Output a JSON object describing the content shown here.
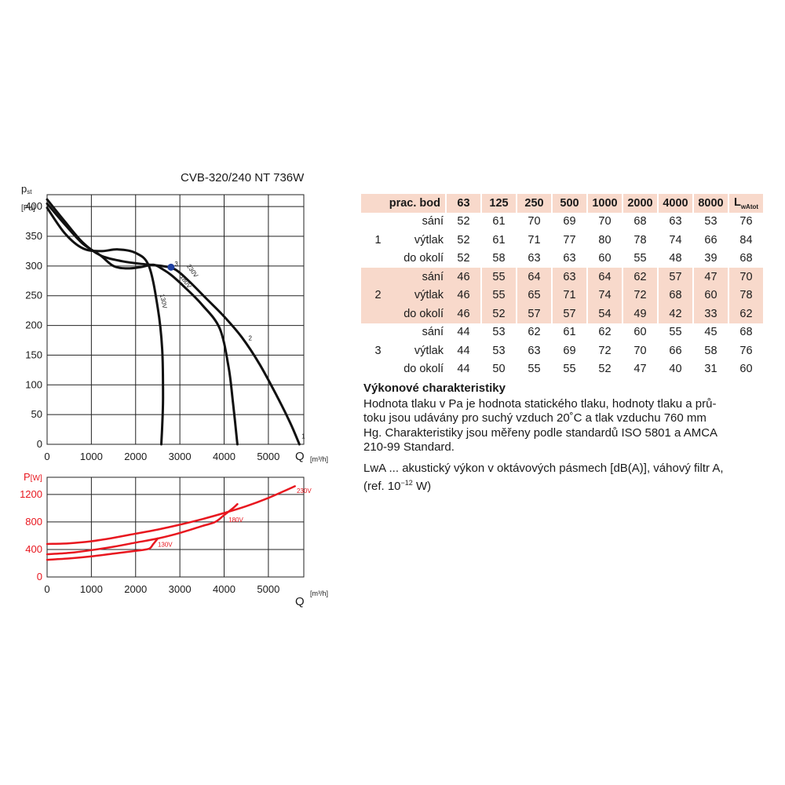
{
  "chart_data": [
    {
      "type": "line",
      "title": "CVB-320/240 NT 736W",
      "ylabel_main": "p",
      "ylabel_sub": "st",
      "yunit": "[Pa]",
      "xlabel": "Q",
      "xunit": "[m³/h]",
      "xlim": [
        0,
        5800
      ],
      "ylim": [
        0,
        420
      ],
      "xticks": [
        0,
        1000,
        2000,
        3000,
        4000,
        5000
      ],
      "yticks": [
        0,
        50,
        100,
        150,
        200,
        250,
        300,
        350,
        400
      ],
      "grid": true,
      "point_labels": [
        "1",
        "2",
        "3"
      ],
      "series": [
        {
          "name": "230V",
          "x": [
            0,
            400,
            800,
            1200,
            1700,
            2200,
            2600,
            2900,
            3200,
            3600,
            4000,
            4400,
            4800,
            5200,
            5500,
            5700
          ],
          "y": [
            412,
            375,
            340,
            318,
            308,
            303,
            300,
            294,
            275,
            245,
            215,
            180,
            135,
            80,
            35,
            0
          ]
        },
        {
          "name": "180V",
          "x": [
            0,
            400,
            800,
            1200,
            1500,
            1800,
            2100,
            2400,
            2600,
            2800,
            3100,
            3500,
            3900,
            4100,
            4200,
            4300
          ],
          "y": [
            405,
            370,
            338,
            318,
            300,
            296,
            298,
            302,
            295,
            285,
            265,
            235,
            195,
            130,
            70,
            0
          ]
        },
        {
          "name": "130V",
          "x": [
            0,
            400,
            800,
            1200,
            1600,
            2000,
            2300,
            2500,
            2600,
            2620,
            2600,
            2580
          ],
          "y": [
            398,
            355,
            330,
            325,
            328,
            322,
            300,
            230,
            160,
            80,
            30,
            0
          ]
        }
      ],
      "operating_point": {
        "x": 2800,
        "y": 298
      }
    },
    {
      "type": "line",
      "ylabel_main": "P",
      "yunit": "[W]",
      "xlabel": "Q",
      "xunit": "[m³/h]",
      "xlim": [
        0,
        5800
      ],
      "ylim": [
        0,
        1450
      ],
      "xticks": [
        0,
        1000,
        2000,
        3000,
        4000,
        5000
      ],
      "yticks": [
        0,
        400,
        800,
        1200
      ],
      "grid": true,
      "color": "#e8171f",
      "series": [
        {
          "name": "230V",
          "x": [
            0,
            500,
            1000,
            1500,
            2000,
            2500,
            3000,
            3500,
            4000,
            4500,
            5000,
            5600
          ],
          "y": [
            480,
            490,
            520,
            570,
            630,
            690,
            760,
            840,
            930,
            1030,
            1150,
            1320
          ]
        },
        {
          "name": "180V",
          "x": [
            0,
            500,
            1000,
            1500,
            2000,
            2500,
            3000,
            3500,
            3800,
            4000,
            4200,
            4300
          ],
          "y": [
            330,
            350,
            390,
            440,
            500,
            560,
            640,
            740,
            800,
            900,
            1000,
            1060
          ]
        },
        {
          "name": "130V",
          "x": [
            0,
            500,
            1000,
            1500,
            2000,
            2300,
            2400,
            2500
          ],
          "y": [
            250,
            270,
            300,
            340,
            380,
            410,
            480,
            560
          ]
        }
      ]
    }
  ],
  "table": {
    "header_label": "prac. bod",
    "bands": [
      "63",
      "125",
      "250",
      "500",
      "1000",
      "2000",
      "4000",
      "8000"
    ],
    "total_main": "L",
    "total_sub": "wAtot",
    "groups": [
      {
        "id": "1",
        "rows": [
          {
            "label": "sání",
            "values": [
              "52",
              "61",
              "70",
              "69",
              "70",
              "68",
              "63",
              "53",
              "76"
            ]
          },
          {
            "label": "výtlak",
            "values": [
              "52",
              "61",
              "71",
              "77",
              "80",
              "78",
              "74",
              "66",
              "84"
            ]
          },
          {
            "label": "do okolí",
            "values": [
              "52",
              "58",
              "63",
              "63",
              "60",
              "55",
              "48",
              "39",
              "68"
            ]
          }
        ]
      },
      {
        "id": "2",
        "rows": [
          {
            "label": "sání",
            "values": [
              "46",
              "55",
              "64",
              "63",
              "64",
              "62",
              "57",
              "47",
              "70"
            ]
          },
          {
            "label": "výtlak",
            "values": [
              "46",
              "55",
              "65",
              "71",
              "74",
              "72",
              "68",
              "60",
              "78"
            ]
          },
          {
            "label": "do okolí",
            "values": [
              "46",
              "52",
              "57",
              "57",
              "54",
              "49",
              "42",
              "33",
              "62"
            ]
          }
        ]
      },
      {
        "id": "3",
        "rows": [
          {
            "label": "sání",
            "values": [
              "44",
              "53",
              "62",
              "61",
              "62",
              "60",
              "55",
              "45",
              "68"
            ]
          },
          {
            "label": "výtlak",
            "values": [
              "44",
              "53",
              "63",
              "69",
              "72",
              "70",
              "66",
              "58",
              "76"
            ]
          },
          {
            "label": "do okolí",
            "values": [
              "44",
              "50",
              "55",
              "55",
              "52",
              "47",
              "40",
              "31",
              "60"
            ]
          }
        ]
      }
    ]
  },
  "notes": {
    "heading": "Výkonové charakteristiky",
    "line1": "Hodnota tlaku v Pa je hodnota statického tlaku, hodnoty tlaku a prů-",
    "line2": "toku jsou udávány pro suchý vzduch 20˚C a tlak vzduchu 760 mm",
    "line3": "Hg. Charakteristiky jsou měřeny podle standardů ISO 5801 a AMCA",
    "line4": "210-99 Standard.",
    "lwa_line1": "LwA ... akustický výkon v oktávových pásmech [dB(A)], váhový filtr A,",
    "lwa_line2_a": "(ref. 10",
    "lwa_exp": "−12",
    "lwa_line2_b": " W)"
  }
}
